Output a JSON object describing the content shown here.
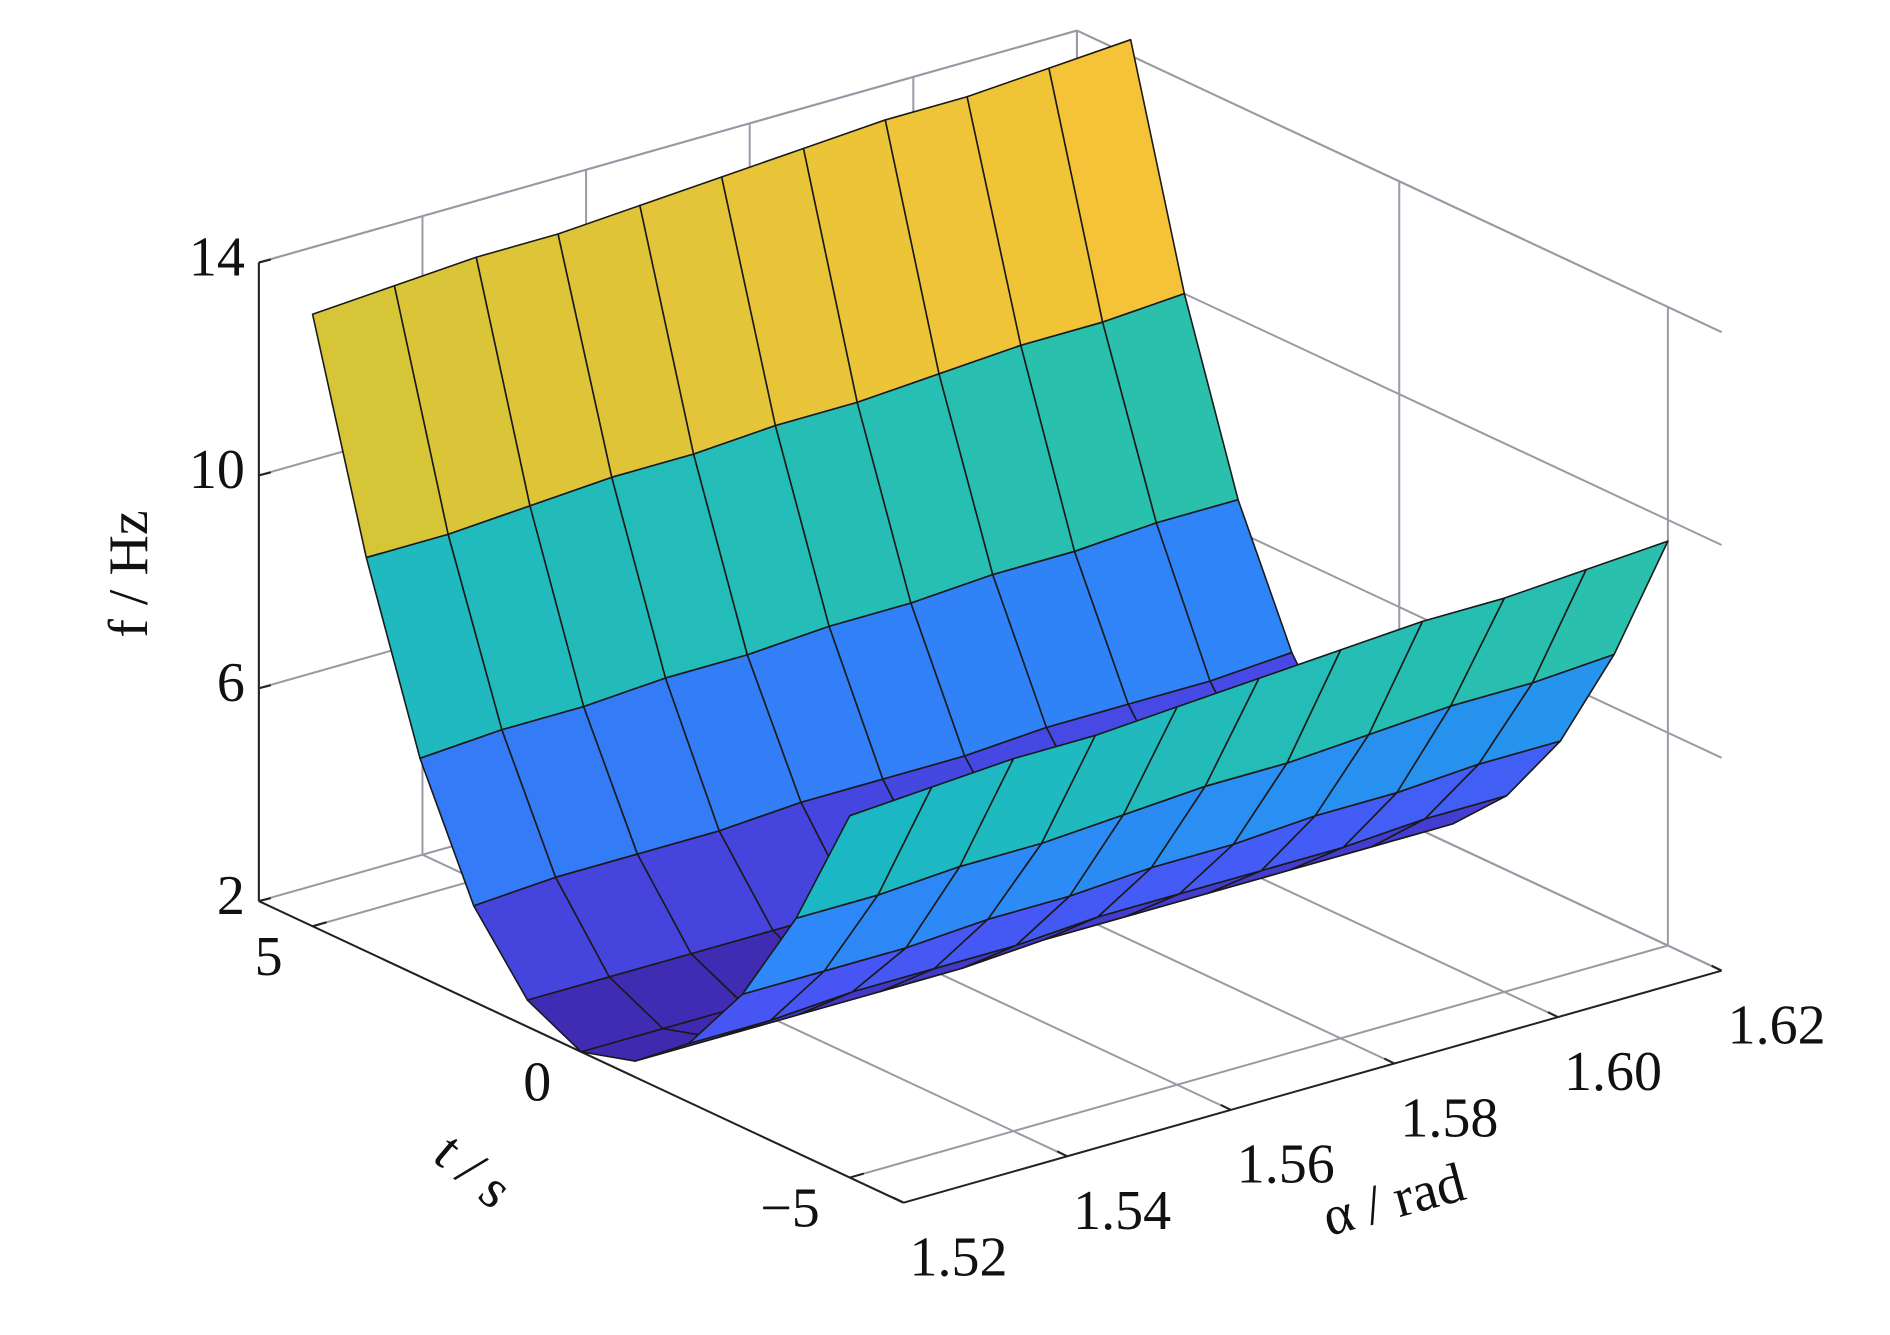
{
  "chart_data": {
    "type": "surface",
    "xlabel": "α / rad",
    "ylabel": "t / s",
    "zlabel": "f / Hz",
    "x": [
      1.52,
      1.53,
      1.54,
      1.55,
      1.56,
      1.57,
      1.58,
      1.59,
      1.6,
      1.61,
      1.62
    ],
    "y": [
      -5,
      -4,
      -3,
      -2,
      -1,
      0,
      1,
      2,
      3,
      4,
      5
    ],
    "z": [
      [
        8.8,
        8.9,
        9.0,
        9.0,
        9.1,
        9.2,
        9.3,
        9.4,
        9.4,
        9.5,
        9.6
      ],
      [
        6.4,
        6.4,
        6.5,
        6.5,
        6.6,
        6.7,
        6.7,
        6.8,
        6.9,
        6.9,
        7.0
      ],
      [
        4.5,
        4.5,
        4.5,
        4.6,
        4.6,
        4.7,
        4.7,
        4.8,
        4.8,
        4.9,
        4.9
      ],
      [
        3.1,
        3.1,
        3.2,
        3.2,
        3.2,
        3.3,
        3.3,
        3.3,
        3.3,
        3.4,
        3.4
      ],
      [
        2.3,
        2.3,
        2.3,
        2.3,
        2.3,
        2.4,
        2.4,
        2.4,
        2.4,
        2.4,
        2.4
      ],
      [
        2.0,
        2.0,
        2.0,
        2.0,
        2.0,
        2.0,
        2.0,
        2.0,
        2.0,
        2.0,
        2.0
      ],
      [
        2.5,
        2.5,
        2.5,
        2.5,
        2.5,
        2.5,
        2.6,
        2.6,
        2.6,
        2.6,
        2.6
      ],
      [
        3.8,
        3.9,
        3.9,
        3.9,
        4.0,
        4.0,
        4.0,
        4.1,
        4.1,
        4.1,
        4.2
      ],
      [
        6.1,
        6.2,
        6.2,
        6.3,
        6.3,
        6.4,
        6.4,
        6.5,
        6.5,
        6.6,
        6.6
      ],
      [
        9.4,
        9.4,
        9.5,
        9.6,
        9.6,
        9.7,
        9.7,
        9.8,
        9.9,
        9.9,
        10.0
      ],
      [
        13.5,
        13.6,
        13.7,
        13.7,
        13.8,
        13.9,
        14.0,
        14.1,
        14.1,
        14.2,
        14.3
      ]
    ],
    "xlim": [
      1.52,
      1.62
    ],
    "xticks": [
      1.52,
      1.54,
      1.56,
      1.58,
      {
        "value": 1.6,
        "label": "1.60"
      },
      1.62
    ],
    "ylim": [
      -6,
      6
    ],
    "yticks": [
      {
        "value": -5,
        "label": "−5"
      },
      0,
      5
    ],
    "zlim": [
      2,
      14
    ],
    "zticks": [
      2,
      6,
      10,
      14
    ],
    "colormap": "parula",
    "grid": true
  }
}
